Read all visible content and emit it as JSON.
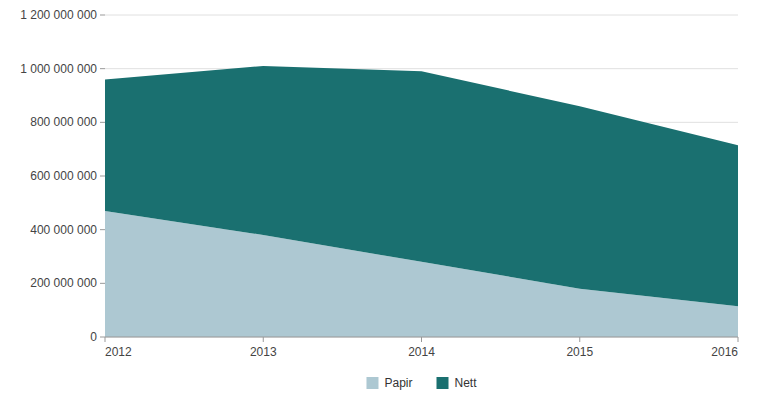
{
  "chart_data": {
    "type": "area",
    "stacked": true,
    "x": [
      2012,
      2013,
      2014,
      2015,
      2016
    ],
    "series": [
      {
        "name": "Papir",
        "color": "#adc8d2",
        "values": [
          470000000,
          380000000,
          280000000,
          180000000,
          115000000
        ]
      },
      {
        "name": "Nett",
        "color": "#1a7070",
        "values": [
          490000000,
          630000000,
          710000000,
          680000000,
          600000000
        ]
      }
    ],
    "xlim": [
      2012,
      2016
    ],
    "xticks": [
      2012,
      2013,
      2014,
      2015,
      2016
    ],
    "ylim": [
      0,
      1200000000
    ],
    "yticks": [
      0,
      {
        "value": 200000000,
        "label": "200 000 000"
      },
      {
        "value": 400000000,
        "label": "400 000 000"
      },
      {
        "value": 600000000,
        "label": "600 000 000"
      },
      {
        "value": 800000000,
        "label": "800 000 000"
      },
      {
        "value": 1000000000,
        "label": "1 000 000 000"
      },
      {
        "value": 1200000000,
        "label": "1 200 000 000"
      }
    ],
    "grid": true,
    "legend": "bottom"
  }
}
